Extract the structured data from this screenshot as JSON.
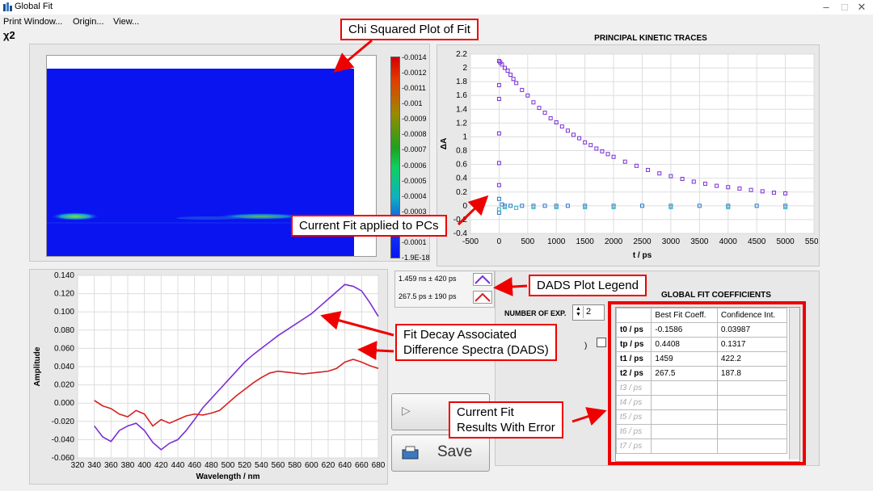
{
  "window": {
    "title": "Global Fit",
    "minimize": "–",
    "maximize": "□",
    "close": "✕"
  },
  "menu": [
    "Print Window...",
    "Origin...",
    "View..."
  ],
  "chi_panel": {
    "label": "χ2",
    "colorbar_ticks": [
      "-0.0014",
      "-0.0012",
      "-0.0011",
      "-0.001",
      "-0.0009",
      "-0.0008",
      "-0.0007",
      "-0.0006",
      "-0.0005",
      "-0.0004",
      "-0.0003",
      "-0.0002",
      "-0.0001",
      "-1.9E-18"
    ]
  },
  "kinetic_panel": {
    "title": "PRINCIPAL KINETIC TRACES",
    "ylabel": "ΔA",
    "xlabel": "t / ps",
    "yticks": [
      "2.2",
      "2",
      "1.8",
      "1.6",
      "1.4",
      "1.2",
      "1",
      "0.8",
      "0.6",
      "0.4",
      "0.2",
      "0",
      "-0.2",
      "-0.4"
    ],
    "xticks": [
      "-500",
      "0",
      "500",
      "1000",
      "1500",
      "2000",
      "2500",
      "3000",
      "3500",
      "4000",
      "4500",
      "5000",
      "5500"
    ]
  },
  "dads_legend": [
    {
      "text": "1.459 ns ± 420 ps",
      "color": "#7b2fd6"
    },
    {
      "text": "267.5 ps ± 190 ps",
      "color": "#d62020"
    }
  ],
  "dads_panel": {
    "ylabel": "Amplitude",
    "xlabel": "Wavelength / nm",
    "yticks": [
      "0.140",
      "0.120",
      "0.100",
      "0.080",
      "0.060",
      "0.040",
      "0.020",
      "0.000",
      "-0.020",
      "-0.040",
      "-0.060"
    ],
    "xticks": [
      "320",
      "340",
      "360",
      "380",
      "400",
      "420",
      "440",
      "460",
      "480",
      "500",
      "520",
      "540",
      "560",
      "580",
      "600",
      "620",
      "640",
      "660",
      "680"
    ]
  },
  "coefficients": {
    "title": "GLOBAL FIT COEFFICIENTS",
    "num_exp_label": "NUMBER OF EXP.",
    "num_exp_value": "2",
    "partial_label": ")",
    "headers": [
      "",
      "Best Fit Coeff.",
      "Confidence Int."
    ],
    "rows": [
      {
        "name": "t0 / ps",
        "best": "-0.1586",
        "ci": "0.03987",
        "active": true
      },
      {
        "name": "tp / ps",
        "best": "0.4408",
        "ci": "0.1317",
        "active": true
      },
      {
        "name": "t1 / ps",
        "best": "1459",
        "ci": "422.2",
        "active": true
      },
      {
        "name": "t2 / ps",
        "best": "267.5",
        "ci": "187.8",
        "active": true
      },
      {
        "name": "t3 / ps",
        "best": "",
        "ci": "",
        "active": false
      },
      {
        "name": "t4 / ps",
        "best": "",
        "ci": "",
        "active": false
      },
      {
        "name": "t5 / ps",
        "best": "",
        "ci": "",
        "active": false
      },
      {
        "name": "t6 / ps",
        "best": "",
        "ci": "",
        "active": false
      },
      {
        "name": "t7 / ps",
        "best": "",
        "ci": "",
        "active": false
      }
    ]
  },
  "buttons": {
    "fit_partial": "F",
    "save": "Save"
  },
  "callouts": {
    "chi": "Chi Squared Plot of Fit",
    "pcs": "Current Fit applied to PCs",
    "dads_legend": "DADS Plot Legend",
    "dads_line1": "Fit Decay Associated",
    "dads_line2": "Difference Spectra (DADS)",
    "results_line1": "Current Fit",
    "results_line2": "Results With Error"
  },
  "chart_data": [
    {
      "type": "scatter",
      "title": "PRINCIPAL KINETIC TRACES",
      "xlabel": "t / ps",
      "ylabel": "ΔA",
      "xlim": [
        -500,
        5500
      ],
      "ylim": [
        -0.4,
        2.2
      ],
      "grid": true,
      "series": [
        {
          "points": [
            [
              0,
              2.1
            ],
            [
              20,
              2.08
            ],
            [
              50,
              2.05
            ],
            [
              100,
              2.0
            ],
            [
              150,
              1.96
            ],
            [
              200,
              1.9
            ],
            [
              250,
              1.84
            ],
            [
              300,
              1.78
            ],
            [
              400,
              1.68
            ],
            [
              500,
              1.6
            ],
            [
              600,
              1.5
            ],
            [
              700,
              1.42
            ],
            [
              800,
              1.35
            ],
            [
              900,
              1.27
            ],
            [
              1000,
              1.21
            ],
            [
              1100,
              1.15
            ],
            [
              1200,
              1.09
            ],
            [
              1300,
              1.03
            ],
            [
              1400,
              0.98
            ],
            [
              1500,
              0.92
            ],
            [
              1600,
              0.88
            ],
            [
              1700,
              0.83
            ],
            [
              1800,
              0.79
            ],
            [
              1900,
              0.75
            ],
            [
              2000,
              0.71
            ],
            [
              2200,
              0.64
            ],
            [
              2400,
              0.58
            ],
            [
              2600,
              0.52
            ],
            [
              2800,
              0.47
            ],
            [
              3000,
              0.43
            ],
            [
              3200,
              0.39
            ],
            [
              3400,
              0.35
            ],
            [
              3600,
              0.32
            ],
            [
              3800,
              0.29
            ],
            [
              4000,
              0.27
            ],
            [
              4200,
              0.25
            ],
            [
              4400,
              0.23
            ],
            [
              4600,
              0.21
            ],
            [
              4800,
              0.19
            ],
            [
              5000,
              0.18
            ],
            [
              0,
              0.3
            ],
            [
              0,
              0.62
            ],
            [
              0,
              1.05
            ],
            [
              0,
              1.55
            ],
            [
              0,
              1.75
            ]
          ]
        },
        {
          "points": [
            [
              0,
              -0.1
            ],
            [
              50,
              0.02
            ],
            [
              100,
              0.0
            ],
            [
              200,
              0.0
            ],
            [
              400,
              0.0
            ],
            [
              600,
              0.0
            ],
            [
              800,
              0.0
            ],
            [
              1000,
              0.0
            ],
            [
              1200,
              0.0
            ],
            [
              1500,
              0.0
            ],
            [
              2000,
              0.0
            ],
            [
              2500,
              0.0
            ],
            [
              3000,
              0.0
            ],
            [
              3500,
              0.0
            ],
            [
              4000,
              0.0
            ],
            [
              4500,
              0.0
            ],
            [
              5000,
              0.0
            ],
            [
              0,
              0.1
            ]
          ]
        },
        {
          "points": [
            [
              0,
              -0.05
            ],
            [
              100,
              -0.02
            ],
            [
              300,
              -0.03
            ],
            [
              600,
              -0.02
            ],
            [
              1000,
              -0.02
            ],
            [
              1500,
              -0.02
            ],
            [
              2000,
              -0.02
            ],
            [
              3000,
              -0.02
            ],
            [
              4000,
              -0.02
            ],
            [
              5000,
              -0.02
            ]
          ]
        }
      ]
    },
    {
      "type": "line",
      "xlabel": "Wavelength / nm",
      "ylabel": "Amplitude",
      "xlim": [
        320,
        680
      ],
      "ylim": [
        -0.06,
        0.14
      ],
      "grid": true,
      "x": [
        340,
        350,
        360,
        370,
        380,
        390,
        400,
        410,
        420,
        430,
        440,
        450,
        460,
        470,
        480,
        490,
        500,
        510,
        520,
        530,
        540,
        550,
        560,
        570,
        580,
        590,
        600,
        610,
        620,
        630,
        640,
        650,
        660,
        670,
        680
      ],
      "series": [
        {
          "name": "1.459 ns ± 420 ps",
          "color": "#7b2fd6",
          "values": [
            -0.025,
            -0.037,
            -0.042,
            -0.03,
            -0.025,
            -0.022,
            -0.03,
            -0.043,
            -0.051,
            -0.044,
            -0.04,
            -0.03,
            -0.018,
            -0.005,
            0.005,
            0.015,
            0.025,
            0.035,
            0.045,
            0.053,
            0.06,
            0.067,
            0.074,
            0.08,
            0.086,
            0.092,
            0.098,
            0.106,
            0.114,
            0.122,
            0.13,
            0.128,
            0.123,
            0.11,
            0.095
          ]
        },
        {
          "name": "267.5 ps ± 190 ps",
          "color": "#d62020",
          "values": [
            0.003,
            -0.003,
            -0.006,
            -0.012,
            -0.015,
            -0.008,
            -0.012,
            -0.025,
            -0.018,
            -0.022,
            -0.018,
            -0.014,
            -0.012,
            -0.013,
            -0.011,
            -0.008,
            0.0,
            0.008,
            0.015,
            0.022,
            0.028,
            0.033,
            0.035,
            0.034,
            0.033,
            0.032,
            0.033,
            0.034,
            0.035,
            0.038,
            0.045,
            0.048,
            0.045,
            0.041,
            0.038
          ]
        }
      ]
    }
  ]
}
